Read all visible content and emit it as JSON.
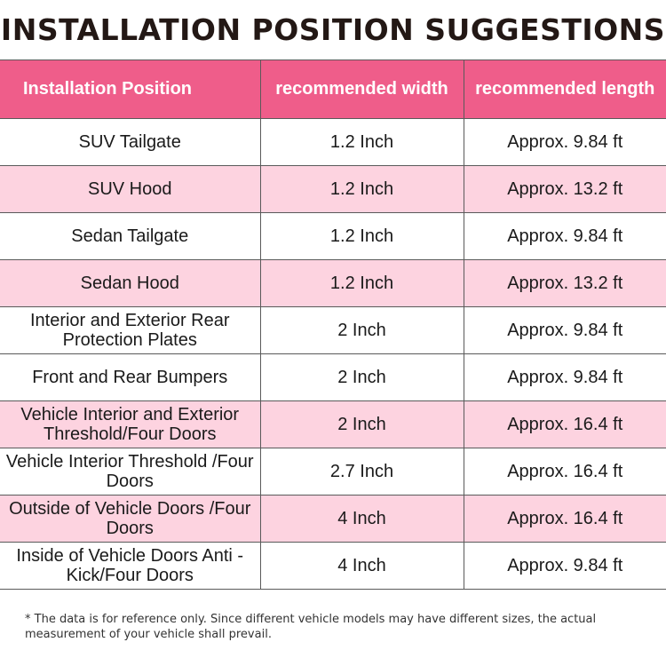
{
  "title": "INSTALLATION POSITION SUGGESTIONS",
  "colors": {
    "header_bg": "#ef5d8a",
    "pink_row": "#fdd3e0",
    "white_row": "#ffffff",
    "border": "#5a5a5a"
  },
  "headers": [
    "Installation Position",
    "recommended width",
    "recommended length"
  ],
  "rows": [
    {
      "position": "SUV Tailgate",
      "width": "1.2 Inch",
      "length": "Approx. 9.84 ft"
    },
    {
      "position": "SUV Hood",
      "width": "1.2 Inch",
      "length": "Approx. 13.2 ft"
    },
    {
      "position": "Sedan Tailgate",
      "width": "1.2 Inch",
      "length": "Approx. 9.84 ft"
    },
    {
      "position": "Sedan Hood",
      "width": "1.2 Inch",
      "length": "Approx. 13.2 ft"
    },
    {
      "position": "Interior and Exterior Rear Protection Plates",
      "width": "2 Inch",
      "length": "Approx. 9.84 ft"
    },
    {
      "position": "Front and Rear Bumpers",
      "width": "2 Inch",
      "length": "Approx. 9.84 ft"
    },
    {
      "position": "Vehicle Interior and Exterior Threshold/Four Doors",
      "width": "2 Inch",
      "length": "Approx. 16.4 ft"
    },
    {
      "position": "Vehicle Interior Threshold /Four Doors",
      "width": "2.7 Inch",
      "length": "Approx. 16.4 ft"
    },
    {
      "position": "Outside of Vehicle Doors /Four Doors",
      "width": "4 Inch",
      "length": "Approx. 16.4 ft"
    },
    {
      "position": "Inside of Vehicle Doors Anti - Kick/Four Doors",
      "width": "4 Inch",
      "length": "Approx. 9.84 ft"
    }
  ],
  "footnote": "* The data is for reference only. Since different vehicle models may have different sizes, the actual measurement of your vehicle shall prevail."
}
